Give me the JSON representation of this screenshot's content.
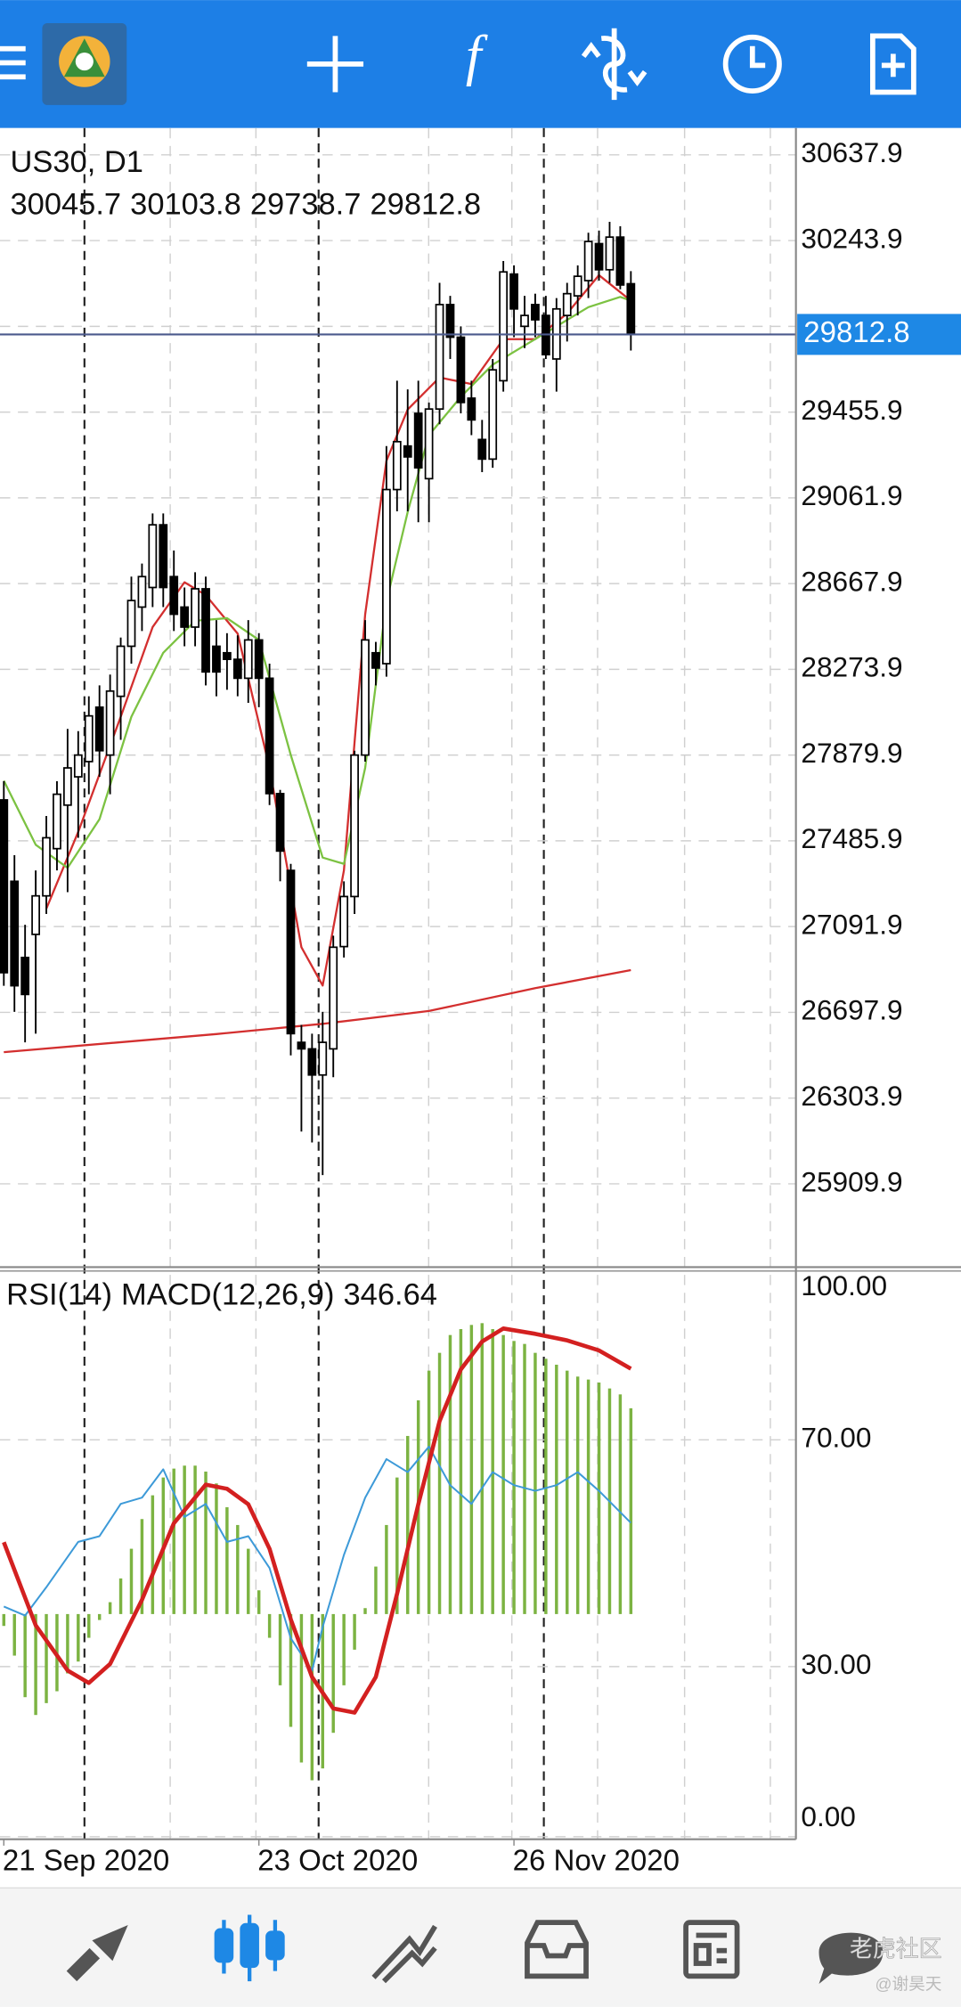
{
  "chart_data": [
    {
      "type": "candlestick",
      "title": "US30, D1",
      "open": [
        27674,
        27300,
        26950,
        27056,
        27233,
        27450,
        27650,
        27780,
        27850,
        28100,
        27880,
        28150,
        28380,
        28560,
        28650,
        28938,
        28700,
        28560,
        28468,
        28644,
        28380,
        28350,
        28320,
        28233,
        28409,
        28233,
        27703,
        27350,
        26560,
        26530,
        26410,
        26530,
        27000,
        27230,
        27880,
        28350,
        28300,
        29100,
        29300,
        29450,
        29150,
        29470,
        29950,
        29800,
        29520,
        29330,
        29240,
        29600,
        30090,
        29850,
        29950,
        29900,
        29700,
        29900,
        29990,
        30060,
        30230,
        30110,
        30260,
        30045.7
      ],
      "high": [
        27760,
        27420,
        27100,
        27350,
        27600,
        27760,
        28000,
        27990,
        28150,
        28200,
        28250,
        28420,
        28700,
        28760,
        28990,
        28990,
        28820,
        28650,
        28720,
        28700,
        28500,
        28440,
        28430,
        28500,
        28440,
        28300,
        27720,
        27380,
        26640,
        26600,
        26700,
        27050,
        27300,
        27900,
        28500,
        28400,
        29300,
        29600,
        29560,
        29600,
        29500,
        30050,
        29990,
        29850,
        29600,
        29420,
        29700,
        30150,
        30130,
        29990,
        30000,
        29990,
        29980,
        30050,
        30130,
        30280,
        30290,
        30330,
        30310,
        30103.8
      ],
      "low": [
        26820,
        26700,
        26560,
        26600,
        27150,
        27350,
        27250,
        27500,
        27700,
        27780,
        27700,
        27950,
        28300,
        28450,
        28560,
        28560,
        28450,
        28380,
        28380,
        28200,
        28150,
        28180,
        28150,
        28120,
        28100,
        27650,
        27300,
        26500,
        26150,
        26100,
        25950,
        26400,
        26950,
        27150,
        27850,
        28200,
        28240,
        29000,
        29000,
        28950,
        28950,
        29400,
        29700,
        29450,
        29350,
        29180,
        29200,
        29550,
        29800,
        29750,
        29800,
        29700,
        29550,
        29780,
        29900,
        29980,
        30060,
        30050,
        30020,
        29738.7
      ],
      "close": [
        26880,
        26820,
        26780,
        27233,
        27500,
        27700,
        27821,
        27880,
        28060,
        27900,
        28174,
        28380,
        28590,
        28700,
        28938,
        28650,
        28527,
        28468,
        28644,
        28262,
        28262,
        28320,
        28233,
        28409,
        28233,
        27703,
        27439,
        26600,
        26530,
        26410,
        26560,
        26997,
        27230,
        27880,
        28409,
        28280,
        29100,
        29320,
        29250,
        29200,
        29470,
        29950,
        29800,
        29500,
        29420,
        29240,
        29650,
        30100,
        29930,
        29900,
        29880,
        29720,
        29930,
        30000,
        30080,
        30240,
        30110,
        30260,
        30040,
        29812.8
      ],
      "bull_color": "#ffffff",
      "bear_color": "#000000",
      "last_price_color": "#1e88e5",
      "last_price_line_color": "#4b5a8c",
      "overlays": [
        {
          "color": "#d32f2f",
          "x": [
            4,
            7,
            11,
            14,
            17,
            19,
            22,
            25,
            28,
            30,
            32,
            34,
            36,
            38,
            41,
            44,
            47,
            50,
            53,
            56,
            59
          ],
          "values": [
            27174,
            27527,
            28056,
            28468,
            28674,
            28615,
            28438,
            27821,
            26997,
            26821,
            27350,
            28527,
            29232,
            29468,
            29615,
            29585,
            29791,
            29791,
            29909,
            30085,
            29968
          ]
        },
        {
          "color": "#7cc242",
          "x": [
            0,
            3,
            6,
            9,
            12,
            15,
            18,
            21,
            24,
            27,
            30,
            32,
            34,
            36,
            38,
            40,
            43,
            46,
            49,
            52,
            55,
            58,
            59
          ],
          "values": [
            27762,
            27468,
            27362,
            27585,
            28056,
            28350,
            28497,
            28509,
            28409,
            27880,
            27409,
            27380,
            27821,
            28585,
            28997,
            29350,
            29526,
            29674,
            29762,
            29850,
            29938,
            29985,
            29968
          ]
        },
        {
          "color": "#d32f2f",
          "x": [
            0,
            20,
            30,
            40,
            50,
            59
          ],
          "values": [
            26515,
            26598,
            26645,
            26704,
            26809,
            26892
          ]
        }
      ],
      "xlim": [
        -0.36,
        74.53
      ],
      "ylim": [
        25527,
        30761
      ],
      "yticks": [
        30637.9,
        30243.9,
        29849.9,
        29455.9,
        29061.9,
        28667.9,
        28273.9,
        27879.9,
        27485.9,
        27091.9,
        26697.9,
        26303.9,
        25909.9
      ],
      "grid": true
    },
    {
      "type": "oscillator",
      "title": "RSI(14)",
      "subtitle": "MACD(12,26,9)",
      "rsi": {
        "color": "#3d9ad8",
        "x": [
          0,
          2,
          4,
          7,
          9,
          11,
          13,
          15,
          17,
          19,
          21,
          23,
          25,
          27,
          29,
          30,
          32,
          34,
          36,
          38,
          40,
          42,
          44,
          46,
          48,
          50,
          52,
          54,
          56,
          59
        ],
        "values": [
          40.6,
          39,
          44,
          52,
          53,
          58.7,
          59.8,
          64.8,
          56.4,
          58.7,
          52,
          53,
          47.4,
          35,
          29.3,
          37,
          49.7,
          59.8,
          66.6,
          64.3,
          68.8,
          62,
          58.7,
          64.3,
          62,
          61,
          62,
          64.3,
          61,
          55.35
        ]
      },
      "macd_hist": {
        "color": "#7cb342",
        "axis": "y2",
        "values": [
          -20,
          -70,
          -140,
          -170,
          -150,
          -130,
          -100,
          -80,
          -40,
          -10,
          20,
          60,
          110,
          160,
          200,
          230,
          245,
          250,
          250,
          240,
          220,
          180,
          150,
          110,
          40,
          -40,
          -120,
          -190,
          -250,
          -280,
          -260,
          -200,
          -120,
          -60,
          10,
          80,
          150,
          230,
          300,
          360,
          410,
          440,
          470,
          480,
          487,
          490,
          480,
          470,
          460,
          455,
          440,
          430,
          420,
          410,
          400,
          395,
          390,
          380,
          370,
          346.64
        ]
      },
      "macd_signal": {
        "color": "#d32020",
        "axis": "y2",
        "x": [
          0,
          3,
          6,
          8,
          10,
          13,
          16,
          19,
          21,
          23,
          25,
          27,
          29,
          31,
          33,
          35,
          37,
          39,
          41,
          43,
          45,
          47,
          50,
          53,
          56,
          59
        ],
        "values": [
          121,
          -19,
          -95,
          -116,
          -84,
          24,
          153,
          218,
          211,
          185,
          110,
          -9,
          -106,
          -159,
          -166,
          -106,
          34,
          185,
          325,
          412,
          459,
          481,
          472,
          461,
          444,
          413.22
        ]
      },
      "xlim": [
        -0.36,
        74.53
      ],
      "ylim": [
        0,
        100
      ],
      "y2lim": [
        -375,
        580
      ],
      "yticks": [
        {
          "value": 100,
          "label": "100.00"
        },
        {
          "value": 70,
          "label": "70.00"
        },
        {
          "value": 30,
          "label": "30.00"
        },
        {
          "value": 0,
          "label": "0.00"
        }
      ],
      "xticks": [
        {
          "value": 0,
          "label": "21 Sep 2020"
        },
        {
          "value": 24,
          "label": "23 Oct 2020"
        },
        {
          "value": 48,
          "label": "26 Nov 2020"
        }
      ],
      "grid": true
    }
  ],
  "watermark": {
    "brand": "老虎社区",
    "user": "@谢昊天"
  }
}
